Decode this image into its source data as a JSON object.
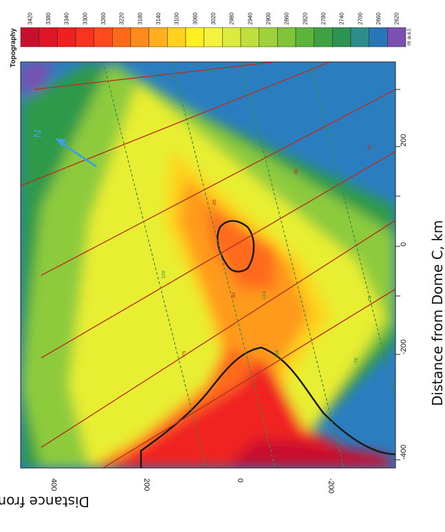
{
  "colorbar": {
    "title": "Topography",
    "unit": "m a.s.l.",
    "levels": [
      3420,
      3380,
      3340,
      3300,
      3260,
      3220,
      3180,
      3140,
      3100,
      3060,
      3020,
      2980,
      2940,
      2900,
      2860,
      2820,
      2780,
      2740,
      2700,
      2660,
      2620
    ],
    "colors": [
      "#c8102e",
      "#e01526",
      "#f02020",
      "#fa3220",
      "#ff4a1e",
      "#ff6a1a",
      "#ff8c1a",
      "#ffb01c",
      "#ffd21e",
      "#fff020",
      "#f4f23a",
      "#dcec3c",
      "#bfe03c",
      "#9fd23a",
      "#7fc43a",
      "#5db43c",
      "#3ea244",
      "#2e9350",
      "#2e8c8a",
      "#2a74b8",
      "#7a4fb0"
    ]
  },
  "x_axis": {
    "label": "Distance from Dome C, km",
    "ticks": [
      "-400",
      "-200",
      "0",
      "200"
    ]
  },
  "y_axis": {
    "label": "Distance from Dome C, km",
    "ticks": [
      "400",
      "200",
      "0",
      "-200"
    ]
  },
  "north_label": "N",
  "contour_labels": {
    "red": [
      "-90",
      "-85",
      "-80",
      "-75",
      "-65"
    ],
    "green": [
      "120",
      "124",
      "128",
      "-76",
      "-78"
    ]
  },
  "colors": {
    "red_contour": "#b5311e",
    "green_contour": "#3f8a35",
    "north_arrow": "#3fa0dc",
    "bold_contour": "#1a1a1a"
  }
}
